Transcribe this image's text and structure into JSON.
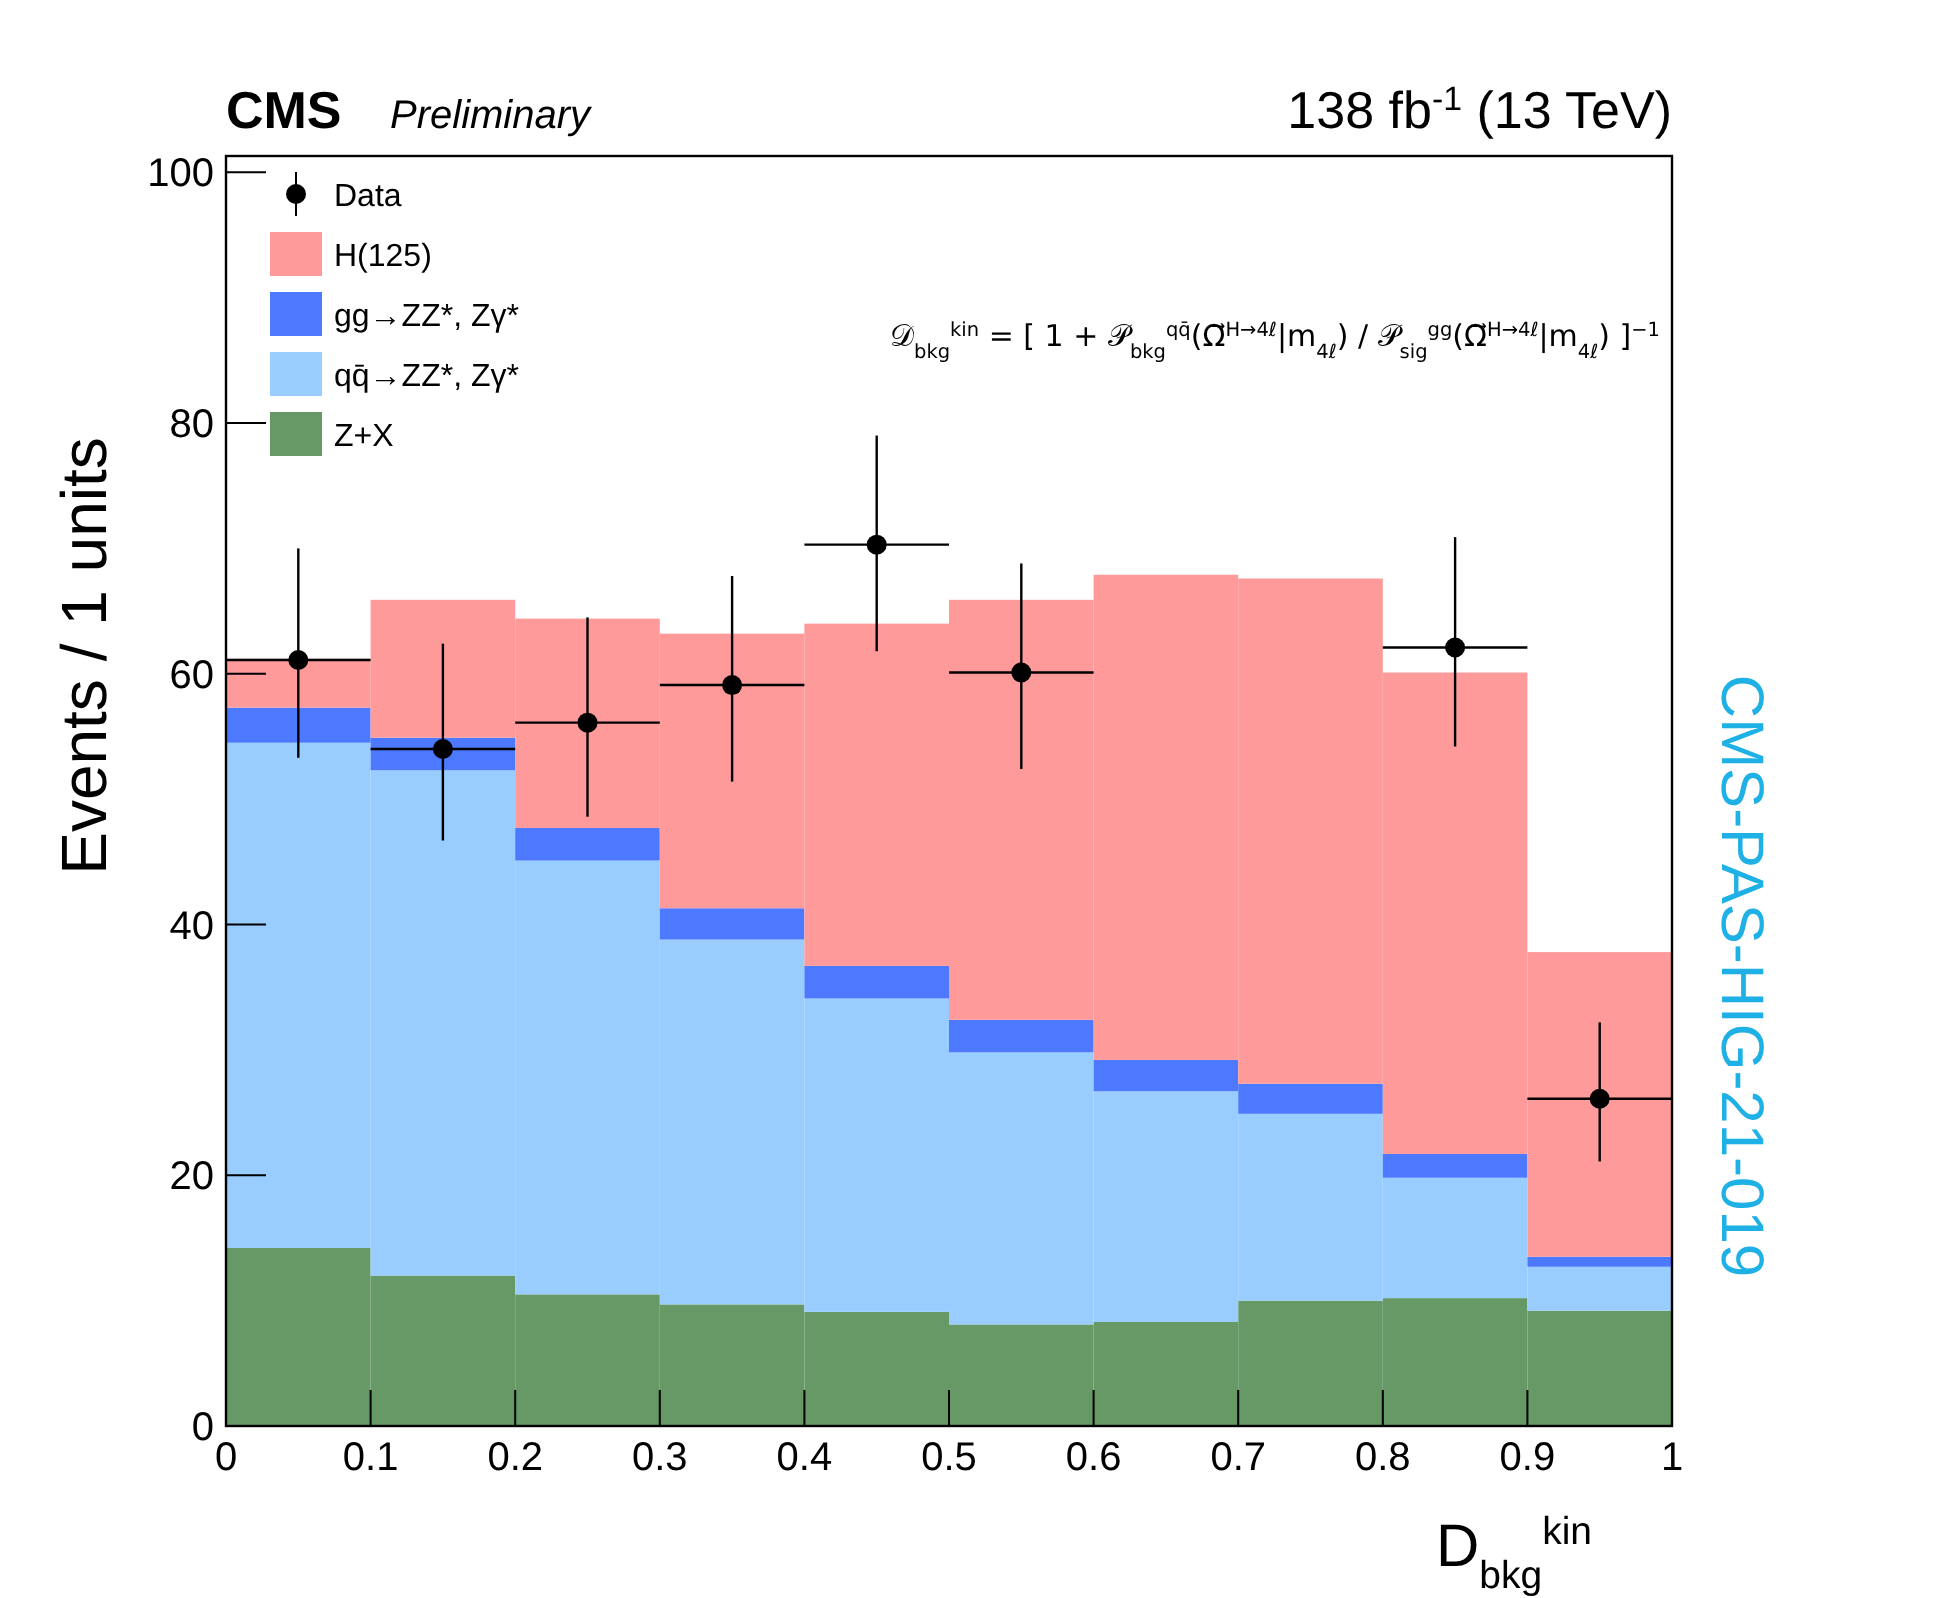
{
  "chart_data": {
    "type": "bar",
    "title": "CMS",
    "subtitle": "Preliminary",
    "xlabel": "D$_{bkg}$$^{kin}$",
    "ylabel": "Events / 1 units",
    "annotations": [
      "138 fb$^{-1}$ (13 TeV)",
      "𝒟$_{bkg}$$^{kin}$ = [ 1 + 𝒫$_{bkg}$$^{qq̄}$(Ω⃗$^{H→4ℓ}$|m$_{4ℓ}$) / 𝒫$_{sig}$$^{gg}$(Ω⃗$^{H→4ℓ}$|m$_{4ℓ}$) ]$^{−1}$",
      "CMS-PAS-HIG-21-019"
    ],
    "x": [
      0.05,
      0.15,
      0.25,
      0.35,
      0.45,
      0.55,
      0.65,
      0.75,
      0.85,
      0.95
    ],
    "stacked": true,
    "series": [
      {
        "name": "Z+X",
        "color": "#669966",
        "values": [
          14.2,
          12.0,
          10.5,
          9.7,
          9.1,
          8.1,
          8.3,
          10.0,
          10.2,
          9.2
        ]
      },
      {
        "name": "qq̄→ZZ*, Zγ*",
        "color": "#99ccff",
        "values": [
          40.3,
          40.3,
          34.6,
          29.1,
          25.0,
          21.7,
          18.4,
          14.9,
          9.6,
          3.5
        ]
      },
      {
        "name": "gg→ZZ*, Zγ*",
        "color": "#4d79ff",
        "values": [
          2.8,
          2.6,
          2.6,
          2.5,
          2.6,
          2.6,
          2.5,
          2.4,
          1.9,
          0.8
        ]
      },
      {
        "name": "H(125)",
        "color": "#fe9a9a",
        "values": [
          3.9,
          11.0,
          16.7,
          21.9,
          27.3,
          33.5,
          38.7,
          40.3,
          38.4,
          24.3
        ]
      },
      {
        "name": "Data",
        "type": "scatter",
        "color": "#000000",
        "x": [
          0.05,
          0.15,
          0.25,
          0.35,
          0.45,
          0.55,
          0.65,
          0.75,
          0.85,
          0.95
        ],
        "values": [
          61.1,
          54.0,
          56.1,
          59.1,
          70.3,
          60.1,
          null,
          null,
          62.1,
          26.1
        ],
        "errors": [
          [
            53.3,
            70
          ],
          [
            46.7,
            62.4
          ],
          [
            48.6,
            64.5
          ],
          [
            51.4,
            67.8
          ],
          [
            61.8,
            79
          ],
          [
            52.4,
            68.8
          ],
          null,
          null,
          [
            54.2,
            70.9
          ],
          [
            21.1,
            32.2
          ]
        ],
        "xerrors": [
          0.05,
          0.05,
          0.05,
          0.05,
          0.05,
          0.05,
          null,
          null,
          0.05,
          0.05
        ]
      }
    ],
    "xlim": [
      0,
      1
    ],
    "xticks": [
      0,
      0.1,
      0.2,
      0.3,
      0.4,
      0.5,
      0.6,
      0.7,
      0.8,
      0.9,
      1
    ],
    "ylim": [
      0,
      101.3
    ],
    "yticks": [
      0,
      20,
      40,
      60,
      80,
      100
    ],
    "marker": "circle",
    "legend": "top left"
  }
}
